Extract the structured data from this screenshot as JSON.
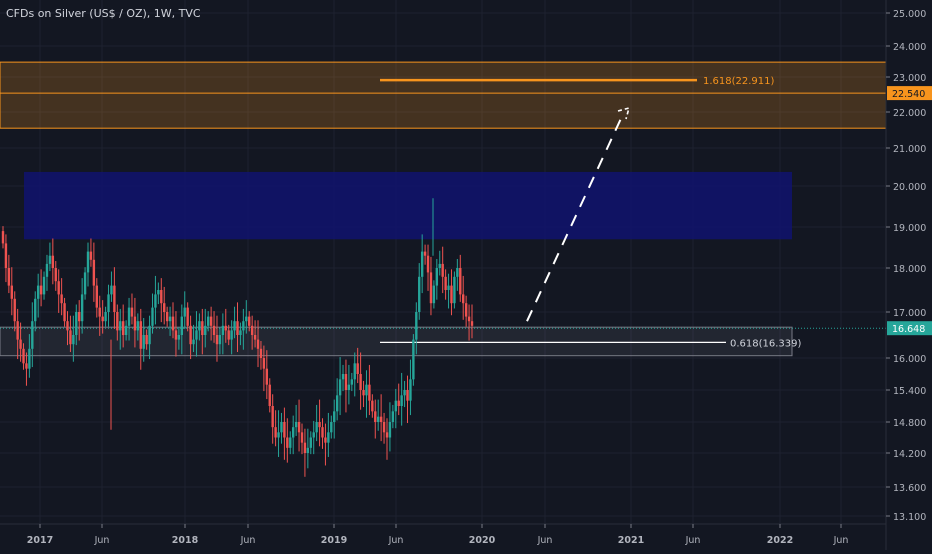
{
  "header": {
    "title": "CFDs on Silver (US$ / OZ), 1W, TVC"
  },
  "colors": {
    "background": "#131722",
    "grid": "#1e2230",
    "axis_text": "#b2b5be",
    "up": "#26a69a",
    "down": "#ef5350",
    "price_line": "#26a69a",
    "zone_orange": "#f7941d",
    "zone_blue": "#1a1f8a",
    "zone_gray": "#9598a1"
  },
  "price_axis": {
    "ticks": [
      "25.000",
      "24.000",
      "23.000",
      "22.000",
      "21.000",
      "20.000",
      "19.000",
      "18.000",
      "17.000",
      "16.000",
      "15.400",
      "14.800",
      "14.200",
      "13.600",
      "13.100"
    ]
  },
  "time_axis": {
    "ticks": [
      "2017",
      "Jun",
      "2018",
      "Jun",
      "2019",
      "Jun",
      "2020",
      "Jun",
      "2021",
      "Jun",
      "2022",
      "Jun"
    ],
    "bold": [
      true,
      false,
      true,
      false,
      true,
      false,
      true,
      false,
      true,
      false,
      true,
      false
    ]
  },
  "labels": {
    "current_price": "16.648",
    "orange_level": "22.540",
    "fib_upper": "1.618(22.911)",
    "fib_lower": "0.618(16.339)"
  },
  "chart_data": {
    "type": "candlestick",
    "title": "CFDs on Silver (US$ / OZ), 1W, TVC",
    "y_ticks": [
      25.0,
      24.0,
      23.0,
      22.0,
      21.0,
      20.0,
      19.0,
      18.0,
      17.0,
      16.0,
      15.4,
      14.8,
      14.2,
      13.6,
      13.1
    ],
    "closes": [
      18.6,
      18.0,
      17.6,
      17.3,
      16.8,
      16.4,
      16.2,
      15.9,
      15.8,
      16.2,
      16.8,
      17.3,
      17.6,
      17.4,
      17.8,
      18.1,
      18.3,
      18.0,
      17.7,
      17.4,
      17.2,
      16.8,
      16.6,
      16.3,
      16.5,
      17.0,
      16.8,
      17.4,
      17.9,
      18.4,
      18.2,
      17.6,
      17.1,
      16.9,
      16.8,
      17.0,
      17.4,
      17.6,
      17.0,
      16.6,
      16.8,
      16.5,
      16.7,
      17.1,
      16.9,
      16.6,
      16.8,
      16.2,
      16.5,
      16.3,
      16.7,
      17.1,
      17.4,
      17.5,
      17.2,
      17.0,
      16.8,
      16.9,
      16.6,
      16.4,
      16.5,
      16.9,
      17.1,
      16.7,
      16.3,
      16.4,
      16.6,
      16.8,
      16.5,
      16.7,
      16.9,
      16.7,
      16.5,
      16.3,
      16.5,
      16.7,
      16.6,
      16.4,
      16.6,
      16.8,
      16.5,
      16.6,
      16.8,
      16.9,
      16.7,
      16.5,
      16.4,
      16.2,
      16.0,
      15.8,
      15.5,
      15.1,
      14.7,
      14.5,
      14.6,
      14.8,
      14.5,
      14.3,
      14.5,
      14.7,
      14.8,
      14.6,
      14.4,
      14.2,
      14.3,
      14.5,
      14.6,
      14.8,
      14.7,
      14.5,
      14.4,
      14.6,
      14.8,
      15.0,
      15.3,
      15.6,
      15.7,
      15.4,
      15.5,
      15.6,
      15.9,
      15.7,
      15.4,
      15.3,
      15.5,
      15.2,
      15.0,
      14.8,
      14.9,
      14.8,
      14.6,
      14.5,
      14.8,
      15.0,
      15.2,
      15.1,
      15.3,
      15.4,
      15.2,
      15.6,
      16.4,
      17.0,
      17.8,
      18.4,
      18.3,
      17.9,
      17.2,
      17.6,
      18.0,
      18.1,
      17.8,
      17.5,
      17.6,
      17.2,
      17.8,
      18.0,
      17.4,
      17.2,
      16.9,
      16.8,
      16.7
    ],
    "zones": [
      {
        "color": "orange",
        "from": 21.55,
        "to": 23.48
      },
      {
        "color": "blue",
        "from": 18.7,
        "to": 20.37
      },
      {
        "color": "gray",
        "from": 16.05,
        "to": 16.67
      }
    ],
    "levels": [
      {
        "label": "1.618(22.911)",
        "value": 22.911
      },
      {
        "label": "0.618(16.339)",
        "value": 16.339
      },
      {
        "label": "22.540",
        "value": 22.54
      },
      {
        "label": "16.648",
        "value": 16.648
      }
    ],
    "projection": {
      "from": 16.8,
      "to": 22.0
    },
    "y_range": [
      13.0,
      25.4
    ]
  }
}
